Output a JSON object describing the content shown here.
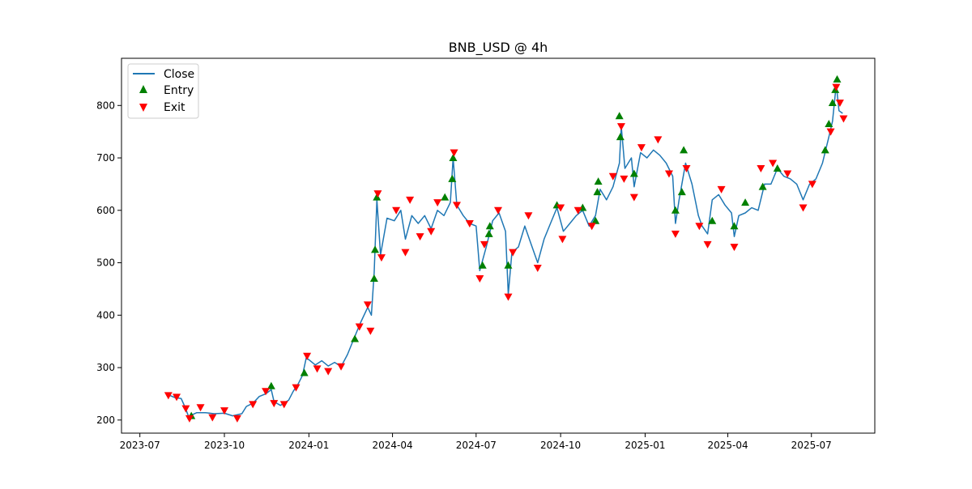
{
  "chart_data": {
    "type": "line",
    "title": "BNB_USD @ 4h",
    "xlabel": "",
    "ylabel": "",
    "x_ticks": [
      "2023-07",
      "2023-10",
      "2024-01",
      "2024-04",
      "2024-07",
      "2024-10",
      "2025-01",
      "2025-04",
      "2025-07"
    ],
    "y_ticks": [
      200,
      300,
      400,
      500,
      600,
      700,
      800
    ],
    "xlim": [
      "2023-06-11",
      "2025-09-08"
    ],
    "ylim": [
      175,
      890
    ],
    "grid": false,
    "legend_position": "upper-left",
    "series": [
      {
        "name": "Close",
        "kind": "line",
        "color": "#1f77b4",
        "points": [
          [
            "2023-08-01",
            248
          ],
          [
            "2023-08-08",
            243
          ],
          [
            "2023-08-15",
            241
          ],
          [
            "2023-08-19",
            225
          ],
          [
            "2023-08-23",
            207
          ],
          [
            "2023-09-01",
            214
          ],
          [
            "2023-09-10",
            214
          ],
          [
            "2023-09-20",
            212
          ],
          [
            "2023-10-01",
            213
          ],
          [
            "2023-10-10",
            208
          ],
          [
            "2023-10-20",
            212
          ],
          [
            "2023-10-25",
            226
          ],
          [
            "2023-11-01",
            232
          ],
          [
            "2023-11-08",
            245
          ],
          [
            "2023-11-15",
            250
          ],
          [
            "2023-11-21",
            258
          ],
          [
            "2023-11-24",
            235
          ],
          [
            "2023-12-01",
            228
          ],
          [
            "2023-12-10",
            238
          ],
          [
            "2023-12-15",
            255
          ],
          [
            "2023-12-20",
            268
          ],
          [
            "2023-12-25",
            285
          ],
          [
            "2023-12-29",
            318
          ],
          [
            "2024-01-01",
            315
          ],
          [
            "2024-01-08",
            305
          ],
          [
            "2024-01-15",
            313
          ],
          [
            "2024-01-22",
            303
          ],
          [
            "2024-01-29",
            310
          ],
          [
            "2024-02-05",
            302
          ],
          [
            "2024-02-12",
            325
          ],
          [
            "2024-02-19",
            355
          ],
          [
            "2024-02-26",
            385
          ],
          [
            "2024-03-05",
            415
          ],
          [
            "2024-03-09",
            400
          ],
          [
            "2024-03-12",
            480
          ],
          [
            "2024-03-15",
            620
          ],
          [
            "2024-03-19",
            515
          ],
          [
            "2024-03-26",
            585
          ],
          [
            "2024-04-03",
            580
          ],
          [
            "2024-04-10",
            600
          ],
          [
            "2024-04-15",
            545
          ],
          [
            "2024-04-22",
            590
          ],
          [
            "2024-04-29",
            575
          ],
          [
            "2024-05-06",
            590
          ],
          [
            "2024-05-13",
            565
          ],
          [
            "2024-05-20",
            600
          ],
          [
            "2024-05-27",
            590
          ],
          [
            "2024-06-03",
            615
          ],
          [
            "2024-06-06",
            700
          ],
          [
            "2024-06-10",
            610
          ],
          [
            "2024-06-17",
            590
          ],
          [
            "2024-06-24",
            575
          ],
          [
            "2024-07-01",
            570
          ],
          [
            "2024-07-05",
            485
          ],
          [
            "2024-07-12",
            530
          ],
          [
            "2024-07-19",
            580
          ],
          [
            "2024-07-26",
            595
          ],
          [
            "2024-08-02",
            560
          ],
          [
            "2024-08-05",
            440
          ],
          [
            "2024-08-09",
            520
          ],
          [
            "2024-08-16",
            530
          ],
          [
            "2024-08-23",
            570
          ],
          [
            "2024-08-30",
            535
          ],
          [
            "2024-09-06",
            500
          ],
          [
            "2024-09-13",
            545
          ],
          [
            "2024-09-20",
            575
          ],
          [
            "2024-09-27",
            605
          ],
          [
            "2024-10-04",
            560
          ],
          [
            "2024-10-11",
            575
          ],
          [
            "2024-10-18",
            590
          ],
          [
            "2024-10-25",
            600
          ],
          [
            "2024-11-01",
            570
          ],
          [
            "2024-11-08",
            590
          ],
          [
            "2024-11-13",
            640
          ],
          [
            "2024-11-20",
            620
          ],
          [
            "2024-11-27",
            645
          ],
          [
            "2024-12-04",
            690
          ],
          [
            "2024-12-06",
            760
          ],
          [
            "2024-12-10",
            680
          ],
          [
            "2024-12-17",
            700
          ],
          [
            "2024-12-20",
            645
          ],
          [
            "2024-12-27",
            710
          ],
          [
            "2025-01-03",
            700
          ],
          [
            "2025-01-10",
            715
          ],
          [
            "2025-01-17",
            705
          ],
          [
            "2025-01-24",
            690
          ],
          [
            "2025-01-31",
            665
          ],
          [
            "2025-02-03",
            575
          ],
          [
            "2025-02-07",
            620
          ],
          [
            "2025-02-14",
            690
          ],
          [
            "2025-02-21",
            650
          ],
          [
            "2025-02-28",
            590
          ],
          [
            "2025-03-04",
            570
          ],
          [
            "2025-03-10",
            555
          ],
          [
            "2025-03-15",
            620
          ],
          [
            "2025-03-22",
            630
          ],
          [
            "2025-03-29",
            610
          ],
          [
            "2025-04-05",
            595
          ],
          [
            "2025-04-08",
            550
          ],
          [
            "2025-04-13",
            590
          ],
          [
            "2025-04-20",
            595
          ],
          [
            "2025-04-27",
            605
          ],
          [
            "2025-05-04",
            600
          ],
          [
            "2025-05-11",
            650
          ],
          [
            "2025-05-18",
            650
          ],
          [
            "2025-05-25",
            680
          ],
          [
            "2025-06-01",
            665
          ],
          [
            "2025-06-08",
            660
          ],
          [
            "2025-06-15",
            650
          ],
          [
            "2025-06-22",
            620
          ],
          [
            "2025-06-29",
            650
          ],
          [
            "2025-07-06",
            660
          ],
          [
            "2025-07-13",
            690
          ],
          [
            "2025-07-20",
            740
          ],
          [
            "2025-07-24",
            770
          ],
          [
            "2025-07-28",
            840
          ],
          [
            "2025-07-31",
            790
          ],
          [
            "2025-08-04",
            785
          ]
        ]
      },
      {
        "name": "Entry",
        "kind": "marker",
        "marker": "triangle-up",
        "color": "#008000",
        "points": [
          [
            "2023-08-26",
            208
          ],
          [
            "2023-11-21",
            265
          ],
          [
            "2023-12-27",
            290
          ],
          [
            "2024-02-20",
            355
          ],
          [
            "2024-03-12",
            470
          ],
          [
            "2024-03-13",
            525
          ],
          [
            "2024-03-15",
            625
          ],
          [
            "2024-05-28",
            625
          ],
          [
            "2024-06-05",
            660
          ],
          [
            "2024-06-06",
            700
          ],
          [
            "2024-07-08",
            495
          ],
          [
            "2024-07-15",
            555
          ],
          [
            "2024-07-16",
            570
          ],
          [
            "2024-08-05",
            495
          ],
          [
            "2024-09-27",
            610
          ],
          [
            "2024-10-25",
            605
          ],
          [
            "2024-11-08",
            580
          ],
          [
            "2024-11-10",
            635
          ],
          [
            "2024-11-11",
            655
          ],
          [
            "2024-12-04",
            780
          ],
          [
            "2024-12-05",
            740
          ],
          [
            "2024-12-20",
            670
          ],
          [
            "2025-02-03",
            600
          ],
          [
            "2025-02-10",
            635
          ],
          [
            "2025-02-12",
            715
          ],
          [
            "2025-03-15",
            580
          ],
          [
            "2025-04-08",
            570
          ],
          [
            "2025-04-20",
            615
          ],
          [
            "2025-05-09",
            645
          ],
          [
            "2025-05-25",
            680
          ],
          [
            "2025-07-16",
            715
          ],
          [
            "2025-07-20",
            765
          ],
          [
            "2025-07-24",
            805
          ],
          [
            "2025-07-27",
            830
          ],
          [
            "2025-07-29",
            850
          ]
        ]
      },
      {
        "name": "Exit",
        "kind": "marker",
        "marker": "triangle-down",
        "color": "#ff0000",
        "points": [
          [
            "2023-08-01",
            247
          ],
          [
            "2023-08-10",
            244
          ],
          [
            "2023-08-20",
            222
          ],
          [
            "2023-08-24",
            203
          ],
          [
            "2023-09-05",
            224
          ],
          [
            "2023-09-18",
            205
          ],
          [
            "2023-10-01",
            218
          ],
          [
            "2023-10-15",
            203
          ],
          [
            "2023-11-01",
            230
          ],
          [
            "2023-11-15",
            255
          ],
          [
            "2023-11-24",
            232
          ],
          [
            "2023-12-05",
            230
          ],
          [
            "2023-12-18",
            262
          ],
          [
            "2023-12-30",
            322
          ],
          [
            "2024-01-10",
            298
          ],
          [
            "2024-01-22",
            293
          ],
          [
            "2024-02-05",
            302
          ],
          [
            "2024-02-25",
            378
          ],
          [
            "2024-03-05",
            420
          ],
          [
            "2024-03-08",
            370
          ],
          [
            "2024-03-16",
            632
          ],
          [
            "2024-03-20",
            510
          ],
          [
            "2024-04-05",
            600
          ],
          [
            "2024-04-15",
            520
          ],
          [
            "2024-04-20",
            620
          ],
          [
            "2024-05-01",
            550
          ],
          [
            "2024-05-13",
            560
          ],
          [
            "2024-05-20",
            615
          ],
          [
            "2024-06-07",
            710
          ],
          [
            "2024-06-10",
            610
          ],
          [
            "2024-06-24",
            575
          ],
          [
            "2024-07-05",
            470
          ],
          [
            "2024-07-10",
            535
          ],
          [
            "2024-07-25",
            600
          ],
          [
            "2024-08-05",
            435
          ],
          [
            "2024-08-10",
            520
          ],
          [
            "2024-08-27",
            590
          ],
          [
            "2024-09-06",
            490
          ],
          [
            "2024-10-01",
            605
          ],
          [
            "2024-10-03",
            545
          ],
          [
            "2024-10-20",
            600
          ],
          [
            "2024-11-04",
            570
          ],
          [
            "2024-11-27",
            665
          ],
          [
            "2024-12-06",
            760
          ],
          [
            "2024-12-09",
            660
          ],
          [
            "2024-12-20",
            625
          ],
          [
            "2024-12-28",
            720
          ],
          [
            "2025-01-15",
            735
          ],
          [
            "2025-01-27",
            670
          ],
          [
            "2025-02-03",
            555
          ],
          [
            "2025-02-15",
            680
          ],
          [
            "2025-03-01",
            570
          ],
          [
            "2025-03-10",
            535
          ],
          [
            "2025-03-25",
            640
          ],
          [
            "2025-04-08",
            530
          ],
          [
            "2025-05-07",
            680
          ],
          [
            "2025-05-20",
            690
          ],
          [
            "2025-06-05",
            670
          ],
          [
            "2025-06-22",
            605
          ],
          [
            "2025-07-02",
            650
          ],
          [
            "2025-07-22",
            750
          ],
          [
            "2025-07-28",
            835
          ],
          [
            "2025-08-01",
            805
          ],
          [
            "2025-08-05",
            775
          ]
        ]
      }
    ]
  }
}
